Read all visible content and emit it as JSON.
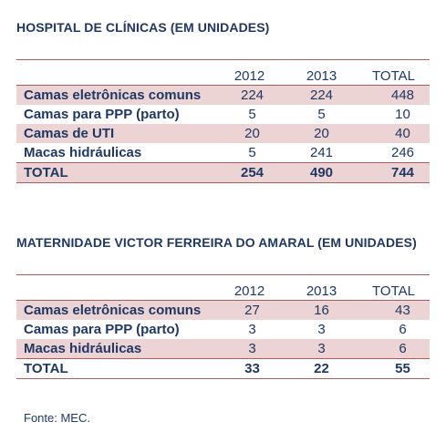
{
  "table1": {
    "title": "HOSPITAL DE CLÍNICAS (EM UNIDADES)",
    "headers": [
      "",
      "2012",
      "2013",
      "TOTAL"
    ],
    "rows": [
      {
        "label": "Camas eletrônicas comuns",
        "v2012": "224",
        "v2013": "224",
        "total": "448"
      },
      {
        "label": "Camas para PPP (parto)",
        "v2012": "5",
        "v2013": "5",
        "total": "10"
      },
      {
        "label": "Camas de UTI",
        "v2012": "20",
        "v2013": "20",
        "total": "40"
      },
      {
        "label": "Macas hidráulicas",
        "v2012": "5",
        "v2013": "241",
        "total": "246"
      }
    ],
    "total_row": {
      "label": "TOTAL",
      "v2012": "254",
      "v2013": "490",
      "total": "744"
    }
  },
  "table2": {
    "title": "MATERNIDADE VICTOR FERREIRA DO AMARAL (EM UNIDADES)",
    "headers": [
      "",
      "2012",
      "2013",
      "TOTAL"
    ],
    "rows": [
      {
        "label": "Camas eletrônicas comuns",
        "v2012": "27",
        "v2013": "16",
        "total": "43"
      },
      {
        "label": "Camas para PPP (parto)",
        "v2012": "3",
        "v2013": "3",
        "total": "6"
      },
      {
        "label": "Macas hidráulicas",
        "v2012": "3",
        "v2013": "3",
        "total": "6"
      }
    ],
    "total_row": {
      "label": "TOTAL",
      "v2012": "33",
      "v2013": "22",
      "total": "55"
    }
  },
  "source": "Fonte: MEC.",
  "colors": {
    "text": "#1f3864",
    "shade": "#ecd4d4",
    "rule": "#b55a5a"
  }
}
